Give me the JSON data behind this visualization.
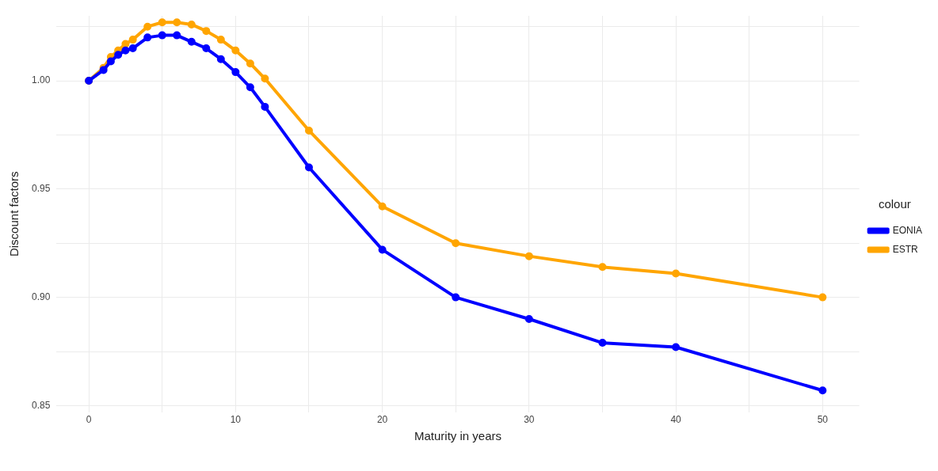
{
  "chart_data": {
    "type": "line",
    "xlabel": "Maturity in years",
    "ylabel": "Discount factors",
    "legend_title": "colour",
    "legend": "right",
    "grid": true,
    "marker": "circle",
    "line_style": "solid",
    "xlim": [
      -2.2,
      52.5
    ],
    "xticks": [
      0,
      {
        "value": 5,
        "label": null
      },
      10,
      {
        "value": 15,
        "label": null
      },
      20,
      {
        "value": 25,
        "label": null
      },
      30,
      {
        "value": 35,
        "label": null
      },
      40,
      {
        "value": 45,
        "label": null
      },
      50
    ],
    "ylim": [
      0.847,
      1.03
    ],
    "yticks": [
      0.85,
      {
        "value": 0.875,
        "label": null
      },
      "0.90",
      {
        "value": 0.925,
        "label": null
      },
      0.95,
      {
        "value": 0.975,
        "label": null
      },
      "1.00",
      {
        "value": 1.025,
        "label": null
      }
    ],
    "x": [
      0,
      1,
      1.5,
      2,
      2.5,
      3,
      4,
      5,
      6,
      7,
      8,
      9,
      10,
      11,
      12,
      15,
      20,
      25,
      30,
      35,
      40,
      50
    ],
    "series": [
      {
        "name": "EONIA",
        "color": "#0000ff",
        "values": [
          1.0,
          1.005,
          1.009,
          1.012,
          1.014,
          1.015,
          1.02,
          1.021,
          1.021,
          1.018,
          1.015,
          1.01,
          1.004,
          0.997,
          0.988,
          0.96,
          0.922,
          0.9,
          0.89,
          0.879,
          0.877,
          0.857
        ]
      },
      {
        "name": "ESTR",
        "color": "#ffa500",
        "values": [
          1.0,
          1.006,
          1.011,
          1.014,
          1.017,
          1.019,
          1.025,
          1.027,
          1.027,
          1.026,
          1.023,
          1.019,
          1.014,
          1.008,
          1.001,
          0.977,
          0.942,
          0.925,
          0.919,
          0.914,
          0.911,
          0.9
        ]
      }
    ]
  }
}
